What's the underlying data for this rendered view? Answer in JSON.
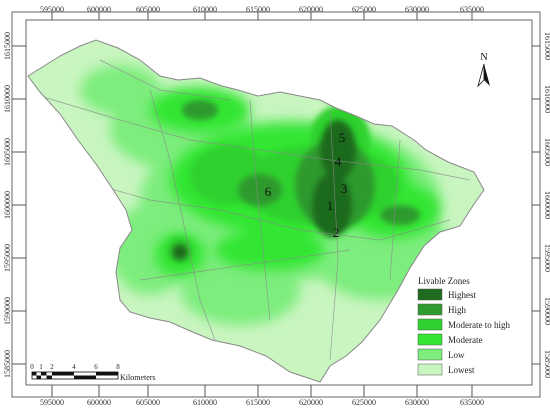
{
  "map": {
    "x_ticks": [
      "595000",
      "600000",
      "605000",
      "610000",
      "615000",
      "620000",
      "625000",
      "630000",
      "635000"
    ],
    "y_ticks": [
      "1615000",
      "1610000",
      "1605000",
      "1600000",
      "1595000",
      "1590000",
      "1585000"
    ],
    "zone_labels": [
      "5",
      "4",
      "3",
      "1",
      "2",
      "6"
    ],
    "north_label": "N"
  },
  "legend": {
    "title": "Livable Zones",
    "items": [
      {
        "label": "Highest",
        "color": "#1f6b1f"
      },
      {
        "label": "High",
        "color": "#2f9a2f"
      },
      {
        "label": "Moderate to high",
        "color": "#2fd12f"
      },
      {
        "label": "Moderate",
        "color": "#33e633"
      },
      {
        "label": "Low",
        "color": "#7ded7d"
      },
      {
        "label": "Lowest",
        "color": "#c9f5c0"
      }
    ]
  },
  "scale_bar": {
    "ticks": [
      "0",
      "1",
      "2",
      "4",
      "6",
      "8"
    ],
    "unit": "Kilometers"
  }
}
